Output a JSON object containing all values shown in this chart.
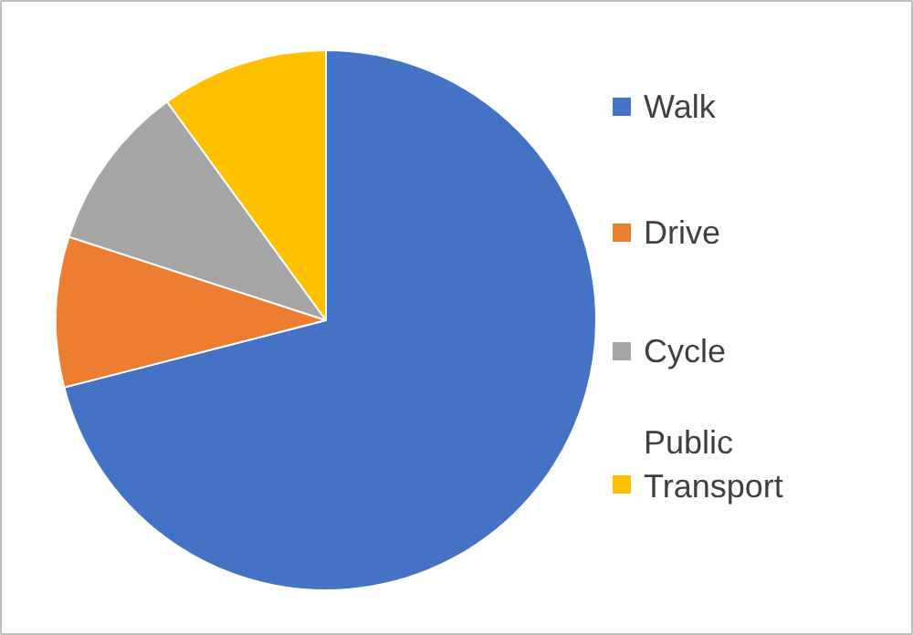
{
  "chart_data": {
    "type": "pie",
    "categories": [
      "Walk",
      "Drive",
      "Cycle",
      "Public Transport"
    ],
    "values": [
      71,
      9,
      10,
      10
    ],
    "colors": [
      "#4472c4",
      "#ed7d31",
      "#a5a5a5",
      "#ffc000"
    ],
    "legend": "right"
  }
}
